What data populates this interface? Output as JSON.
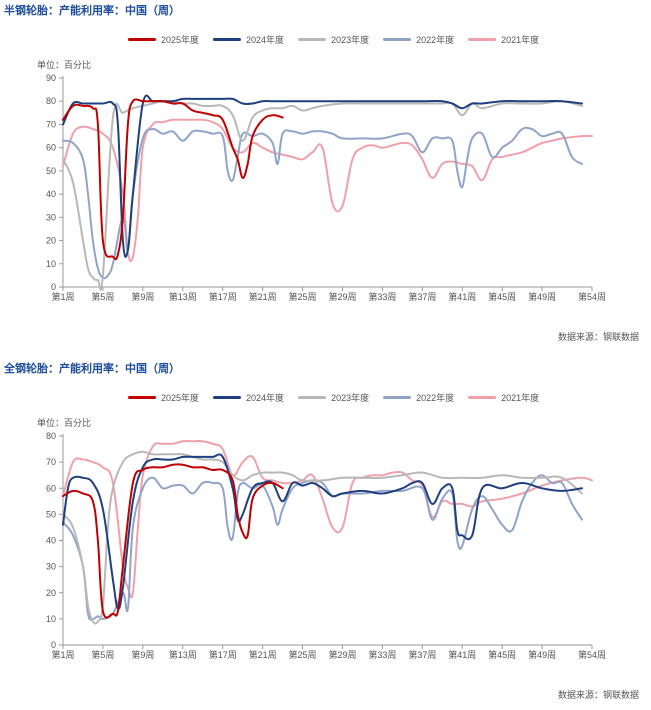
{
  "chart_data": [
    {
      "type": "line",
      "title": "半钢轮胎：产能利用率：中国（周）",
      "unit": "单位：百分比",
      "source": "数据来源：钢联数据",
      "ylim": [
        0,
        90
      ],
      "yticks": [
        0,
        10,
        20,
        30,
        40,
        50,
        60,
        70,
        80,
        90
      ],
      "xlim": [
        1,
        54
      ],
      "xticks": [
        1,
        5,
        9,
        13,
        17,
        21,
        25,
        29,
        33,
        37,
        41,
        45,
        49,
        54
      ],
      "xtick_labels": [
        "第1周",
        "第5周",
        "第9周",
        "第13周",
        "第17周",
        "第21周",
        "第25周",
        "第29周",
        "第33周",
        "第37周",
        "第41周",
        "第45周",
        "第49周",
        "第54周"
      ],
      "grid": false,
      "legend": "top",
      "series": [
        {
          "name": "2025年度",
          "color": "#c00000",
          "x": [
            1,
            2,
            3,
            4,
            4.5,
            5,
            6,
            6.5,
            7,
            7.5,
            8,
            9,
            10,
            11,
            12,
            13,
            14,
            15,
            16,
            17,
            18,
            18.5,
            19,
            19.5,
            20,
            21,
            22,
            23
          ],
          "y": [
            72,
            78,
            78,
            77,
            70,
            20,
            13,
            14,
            30,
            70,
            80,
            80,
            80,
            80,
            79,
            79,
            76,
            75,
            74,
            72,
            60,
            55,
            47,
            53,
            65,
            72,
            74,
            73
          ]
        },
        {
          "name": "2024年度",
          "color": "#1f3f7f",
          "x": [
            1,
            2,
            3,
            4,
            5,
            6,
            6.5,
            7,
            7.5,
            8,
            9,
            10,
            11,
            12,
            13,
            14,
            15,
            16,
            17,
            18,
            19,
            20,
            21,
            22,
            23,
            25,
            27,
            29,
            31,
            33,
            35,
            37,
            39,
            40,
            41,
            42,
            43,
            45,
            47,
            49,
            51,
            53
          ],
          "y": [
            70,
            79,
            79,
            79,
            79,
            79,
            70,
            20,
            16,
            40,
            79,
            80,
            80,
            80,
            81,
            81,
            81,
            81,
            81,
            81,
            79,
            79,
            80,
            80,
            80,
            80,
            80,
            80,
            80,
            80,
            80,
            80,
            80,
            79,
            77,
            79,
            79,
            80,
            80,
            80,
            80,
            79
          ]
        },
        {
          "name": "2023年度",
          "color": "#b8b8b8",
          "x": [
            1,
            2,
            3,
            3.5,
            4,
            4.5,
            5,
            6,
            7,
            8,
            9,
            10,
            11,
            12,
            13,
            14,
            15,
            16,
            17,
            18,
            19,
            20,
            21,
            22,
            23,
            24,
            25,
            26,
            27,
            29,
            31,
            33,
            35,
            37,
            39,
            40,
            41,
            42,
            43,
            45,
            47,
            49,
            51,
            53
          ],
          "y": [
            55,
            45,
            20,
            8,
            4,
            3,
            5,
            73,
            75,
            77,
            78,
            79,
            80,
            80,
            79,
            79,
            78,
            78,
            78,
            74,
            63,
            73,
            76,
            77,
            77,
            78,
            76,
            77,
            78,
            79,
            79,
            79,
            79,
            79,
            79,
            79,
            74,
            79,
            77,
            79,
            79,
            79,
            80,
            78
          ]
        },
        {
          "name": "2022年度",
          "color": "#8fa4c8",
          "x": [
            1,
            2,
            3,
            3.5,
            4,
            4.5,
            5,
            5.5,
            6,
            7,
            7.5,
            8,
            9,
            10,
            11,
            12,
            13,
            14,
            15,
            16,
            17,
            17.5,
            18,
            18.5,
            19,
            20,
            21,
            22,
            22.5,
            23,
            24,
            25,
            26,
            27,
            28,
            29,
            31,
            33,
            35,
            36,
            37,
            38,
            39,
            40,
            40.5,
            41,
            41.5,
            42,
            43,
            44,
            45,
            46,
            47,
            48,
            49,
            50,
            51,
            52,
            53
          ],
          "y": [
            63,
            62,
            55,
            40,
            20,
            8,
            4,
            5,
            10,
            30,
            16,
            40,
            64,
            68,
            66,
            67,
            63,
            67,
            67,
            66,
            65,
            50,
            46,
            56,
            66,
            65,
            66,
            62,
            53,
            66,
            67,
            66,
            67,
            67,
            66,
            64,
            64,
            64,
            66,
            65,
            58,
            64,
            64,
            63,
            50,
            43,
            55,
            64,
            66,
            56,
            60,
            63,
            68,
            68,
            65,
            66,
            66,
            56,
            53
          ]
        },
        {
          "name": "2021年度",
          "color": "#f0a0aa",
          "x": [
            1,
            2,
            3,
            4,
            5,
            6,
            7,
            7.5,
            8,
            8.5,
            9,
            10,
            11,
            12,
            13,
            14,
            15,
            16,
            17,
            18,
            19,
            20,
            21,
            22,
            23,
            24,
            25,
            26,
            27,
            28,
            29,
            30,
            31,
            32,
            33,
            34,
            35,
            36,
            37,
            38,
            39,
            40,
            41,
            42,
            43,
            44,
            45,
            46,
            47,
            48,
            49,
            50,
            51,
            53,
            54
          ],
          "y": [
            52,
            66,
            69,
            68,
            66,
            60,
            40,
            15,
            13,
            30,
            60,
            70,
            71,
            72,
            72,
            72,
            72,
            71,
            68,
            60,
            58,
            62,
            60,
            58,
            57,
            56,
            55,
            58,
            60,
            36,
            35,
            55,
            60,
            61,
            60,
            61,
            62,
            61,
            55,
            47,
            53,
            54,
            53,
            52,
            46,
            55,
            56,
            57,
            58,
            60,
            62,
            63,
            64,
            65,
            65
          ]
        }
      ]
    },
    {
      "type": "line",
      "title": "全钢轮胎：产能利用率：中国（周）",
      "unit": "单位：百分比",
      "source": "数据来源：钢联数据",
      "ylim": [
        0,
        80
      ],
      "yticks": [
        0,
        10,
        20,
        30,
        40,
        50,
        60,
        70,
        80
      ],
      "xlim": [
        1,
        54
      ],
      "xticks": [
        1,
        5,
        9,
        13,
        17,
        21,
        25,
        29,
        33,
        37,
        41,
        45,
        49,
        54
      ],
      "xtick_labels": [
        "第1周",
        "第5周",
        "第9周",
        "第13周",
        "第17周",
        "第21周",
        "第25周",
        "第29周",
        "第33周",
        "第37周",
        "第41周",
        "第45周",
        "第49周",
        "第54周"
      ],
      "grid": false,
      "legend": "top",
      "series": [
        {
          "name": "2025年度",
          "color": "#c00000",
          "x": [
            1,
            2,
            3,
            4,
            4.5,
            5,
            6,
            6.5,
            7,
            8,
            9,
            10,
            11,
            12,
            13,
            14,
            15,
            16,
            17,
            18,
            18.5,
            19,
            19.5,
            20,
            21,
            22,
            23
          ],
          "y": [
            57,
            59,
            58,
            55,
            40,
            13,
            12,
            13,
            30,
            62,
            67,
            68,
            68,
            69,
            69,
            68,
            68,
            67,
            67,
            63,
            50,
            43,
            42,
            56,
            61,
            62,
            60
          ]
        },
        {
          "name": "2024年度",
          "color": "#1f3f7f",
          "x": [
            1,
            1.5,
            2,
            3,
            4,
            5,
            6,
            6.5,
            7,
            8,
            9,
            10,
            11,
            12,
            13,
            14,
            15,
            16,
            17,
            18,
            18.5,
            19,
            20,
            21,
            22,
            23,
            24,
            25,
            26,
            27,
            28,
            29,
            31,
            33,
            35,
            36,
            37,
            38,
            39,
            40,
            40.5,
            41,
            42,
            43,
            45,
            47,
            49,
            51,
            53
          ],
          "y": [
            46,
            60,
            64,
            64,
            62,
            52,
            25,
            14,
            22,
            55,
            68,
            71,
            71,
            71,
            72,
            72,
            72,
            72,
            72,
            60,
            48,
            50,
            60,
            62,
            62,
            55,
            62,
            61,
            62,
            60,
            57,
            58,
            59,
            58,
            60,
            62,
            62,
            54,
            60,
            60,
            44,
            42,
            42,
            60,
            60,
            62,
            60,
            59,
            60
          ]
        },
        {
          "name": "2023年度",
          "color": "#b8b8b8",
          "x": [
            1,
            2,
            3,
            3.5,
            4,
            4.5,
            5,
            5.5,
            6,
            7,
            8,
            9,
            10,
            11,
            12,
            13,
            14,
            15,
            16,
            17,
            18,
            19,
            20,
            21,
            22,
            23,
            24,
            25,
            27,
            29,
            31,
            33,
            35,
            37,
            39,
            41,
            43,
            45,
            47,
            49,
            51,
            53
          ],
          "y": [
            50,
            45,
            30,
            15,
            9,
            9,
            15,
            45,
            60,
            70,
            73,
            74,
            73,
            73,
            73,
            73,
            72,
            71,
            71,
            70,
            65,
            63,
            65,
            66,
            66,
            66,
            65,
            63,
            63,
            64,
            64,
            64,
            65,
            66,
            64,
            64,
            64,
            65,
            64,
            64,
            64,
            58
          ]
        },
        {
          "name": "2022年度",
          "color": "#8fa4c8",
          "x": [
            1,
            2,
            3,
            3.5,
            4,
            4.5,
            5,
            6,
            7,
            7.5,
            8,
            9,
            10,
            11,
            12,
            13,
            14,
            15,
            16,
            17,
            17.5,
            18,
            18.5,
            19,
            20,
            21,
            22,
            22.5,
            23,
            24,
            25,
            26,
            27,
            28,
            29,
            31,
            33,
            35,
            37,
            38,
            39,
            40,
            40.5,
            41,
            42,
            43,
            44,
            45,
            46,
            47,
            48,
            49,
            50,
            51,
            52,
            53
          ],
          "y": [
            47,
            42,
            30,
            12,
            10,
            11,
            10,
            12,
            20,
            14,
            45,
            60,
            64,
            60,
            61,
            61,
            58,
            62,
            62,
            60,
            45,
            41,
            58,
            62,
            60,
            61,
            53,
            46,
            52,
            60,
            62,
            63,
            62,
            57,
            58,
            58,
            59,
            59,
            60,
            48,
            56,
            58,
            40,
            38,
            52,
            57,
            52,
            46,
            44,
            55,
            62,
            65,
            62,
            62,
            54,
            48
          ]
        },
        {
          "name": "2021年度",
          "color": "#f0a0aa",
          "x": [
            1,
            2,
            3,
            4,
            5,
            6,
            7,
            7.5,
            8,
            8.5,
            9,
            10,
            11,
            12,
            13,
            14,
            15,
            16,
            17,
            18,
            19,
            20,
            21,
            22,
            23,
            24,
            25,
            26,
            27,
            28,
            29,
            30,
            31,
            32,
            33,
            34,
            35,
            36,
            37,
            38,
            39,
            40,
            41,
            42,
            43,
            45,
            47,
            49,
            51,
            53,
            54
          ],
          "y": [
            57,
            70,
            71,
            70,
            68,
            62,
            30,
            22,
            20,
            45,
            65,
            76,
            77,
            77,
            78,
            78,
            78,
            77,
            75,
            65,
            70,
            72,
            64,
            63,
            62,
            62,
            63,
            65,
            56,
            45,
            45,
            62,
            64,
            65,
            65,
            66,
            66,
            63,
            61,
            49,
            55,
            54,
            54,
            53,
            55,
            56,
            58,
            61,
            63,
            64,
            63
          ]
        }
      ]
    }
  ]
}
